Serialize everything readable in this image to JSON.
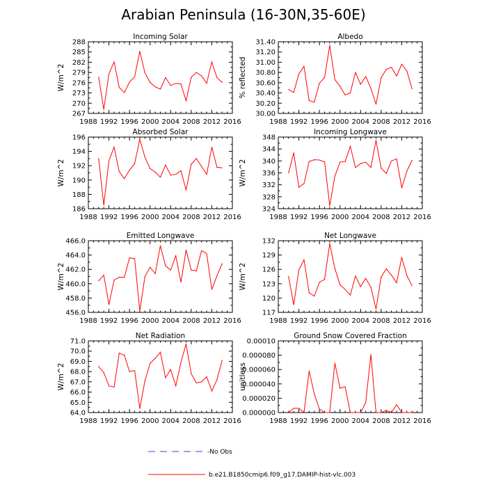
{
  "title": "Arabian Peninsula (16-30N,35-60E)",
  "legend": {
    "obs_label": "No Obs",
    "model_label": "b.e21.B1850cmip6.f09_g17.DAMIP-hist-vlc.003",
    "obs_color": "#3b3bd6",
    "model_color": "#ff0000"
  },
  "chart_data": [
    {
      "type": "line",
      "title": "Incoming Solar",
      "xlabel": "",
      "ylabel": "W/m^2",
      "xlim": [
        1988,
        2016
      ],
      "ylim": [
        267,
        288
      ],
      "xticks": [
        1988,
        1992,
        1996,
        2000,
        2004,
        2008,
        2012,
        2016
      ],
      "xticklabels": [
        "1988",
        "1992",
        "1996",
        "2000",
        "2004",
        "2008",
        "2012",
        "2016"
      ],
      "yticks": [
        267,
        270,
        273,
        276,
        279,
        282,
        285,
        288
      ],
      "yticklabels": [
        "267",
        "270",
        "273",
        "276",
        "279",
        "282",
        "285",
        "288"
      ],
      "x": [
        1990,
        1991,
        1992,
        1993,
        1994,
        1995,
        1996,
        1997,
        1998,
        1999,
        2000,
        2001,
        2002,
        2003,
        2004,
        2005,
        2006,
        2007,
        2008,
        2009,
        2010,
        2011,
        2012,
        2013,
        2014
      ],
      "series": [
        {
          "name": "b.e21.B1850cmip6.f09_g17.DAMIP-hist-vlc.003",
          "values": [
            277.6,
            268.2,
            278.6,
            282.1,
            274.6,
            273.1,
            276.2,
            277.7,
            285.2,
            278.9,
            276.1,
            274.8,
            274.1,
            277.5,
            275.2,
            275.8,
            275.6,
            270.7,
            277.6,
            279.0,
            278.0,
            275.8,
            282.1,
            277.5,
            276.1
          ]
        }
      ]
    },
    {
      "type": "line",
      "title": "Albedo",
      "xlabel": "",
      "ylabel": "% reflected",
      "xlim": [
        1988,
        2016
      ],
      "ylim": [
        30.0,
        31.4
      ],
      "xticks": [
        1988,
        1992,
        1996,
        2000,
        2004,
        2008,
        2012,
        2016
      ],
      "xticklabels": [
        "1988",
        "1992",
        "1996",
        "2000",
        "2004",
        "2008",
        "2012",
        "2016"
      ],
      "yticks": [
        30.0,
        30.2,
        30.4,
        30.6,
        30.8,
        31.0,
        31.2,
        31.4
      ],
      "yticklabels": [
        "30.00",
        "30.20",
        "30.40",
        "30.60",
        "30.80",
        "31.00",
        "31.20",
        "31.40"
      ],
      "x": [
        1990,
        1991,
        1992,
        1993,
        1994,
        1995,
        1996,
        1997,
        1998,
        1999,
        2000,
        2001,
        2002,
        2003,
        2004,
        2005,
        2006,
        2007,
        2008,
        2009,
        2010,
        2011,
        2012,
        2013,
        2014
      ],
      "series": [
        {
          "name": "b.e21.B1850cmip6.f09_g17.DAMIP-hist-vlc.003",
          "values": [
            30.47,
            30.41,
            30.77,
            30.92,
            30.25,
            30.22,
            30.59,
            30.7,
            31.33,
            30.66,
            30.53,
            30.36,
            30.4,
            30.8,
            30.57,
            30.72,
            30.49,
            30.18,
            30.7,
            30.86,
            30.9,
            30.73,
            30.96,
            30.83,
            30.48
          ]
        }
      ]
    },
    {
      "type": "line",
      "title": "Absorbed Solar",
      "xlabel": "",
      "ylabel": "W/m^2",
      "xlim": [
        1988,
        2016
      ],
      "ylim": [
        186,
        196
      ],
      "xticks": [
        1988,
        1992,
        1996,
        2000,
        2004,
        2008,
        2012,
        2016
      ],
      "xticklabels": [
        "1988",
        "1992",
        "1996",
        "2000",
        "2004",
        "2008",
        "2012",
        "2016"
      ],
      "yticks": [
        186,
        188,
        190,
        192,
        194,
        196
      ],
      "yticklabels": [
        "186",
        "188",
        "190",
        "192",
        "194",
        "196"
      ],
      "x": [
        1990,
        1991,
        1992,
        1993,
        1994,
        1995,
        1996,
        1997,
        1998,
        1999,
        2000,
        2001,
        2002,
        2003,
        2004,
        2005,
        2006,
        2007,
        2008,
        2009,
        2010,
        2011,
        2012,
        2013,
        2014
      ],
      "series": [
        {
          "name": "b.e21.B1850cmip6.f09_g17.DAMIP-hist-vlc.003",
          "values": [
            193.0,
            186.5,
            192.7,
            194.6,
            191.2,
            190.2,
            191.4,
            192.3,
            195.7,
            193.2,
            191.6,
            191.1,
            190.4,
            192.1,
            190.7,
            190.8,
            191.3,
            188.6,
            192.2,
            193.0,
            191.9,
            190.8,
            194.6,
            191.8,
            191.7
          ]
        }
      ]
    },
    {
      "type": "line",
      "title": "Incoming Longwave",
      "xlabel": "",
      "ylabel": "W/m^2",
      "xlim": [
        1988,
        2016
      ],
      "ylim": [
        324,
        348
      ],
      "xticks": [
        1988,
        1992,
        1996,
        2000,
        2004,
        2008,
        2012,
        2016
      ],
      "xticklabels": [
        "1988",
        "1992",
        "1996",
        "2000",
        "2004",
        "2008",
        "2012",
        "2016"
      ],
      "yticks": [
        324,
        328,
        332,
        336,
        340,
        344,
        348
      ],
      "yticklabels": [
        "324",
        "328",
        "332",
        "336",
        "340",
        "344",
        "348"
      ],
      "x": [
        1990,
        1991,
        1992,
        1993,
        1994,
        1995,
        1996,
        1997,
        1998,
        1999,
        2000,
        2001,
        2002,
        2003,
        2004,
        2005,
        2006,
        2007,
        2008,
        2009,
        2010,
        2011,
        2012,
        2013,
        2014
      ],
      "series": [
        {
          "name": "b.e21.B1850cmip6.f09_g17.DAMIP-hist-vlc.003",
          "values": [
            336.0,
            342.7,
            331.2,
            332.4,
            339.8,
            340.4,
            340.3,
            339.7,
            325.0,
            334.9,
            339.6,
            339.8,
            344.9,
            337.8,
            339.1,
            339.6,
            337.8,
            346.9,
            337.6,
            335.8,
            340.0,
            340.7,
            331.0,
            336.6,
            340.2
          ]
        }
      ]
    },
    {
      "type": "line",
      "title": "Emitted Longwave",
      "xlabel": "",
      "ylabel": "W/m^2",
      "xlim": [
        1988,
        2016
      ],
      "ylim": [
        456.0,
        466.0
      ],
      "xticks": [
        1988,
        1992,
        1996,
        2000,
        2004,
        2008,
        2012,
        2016
      ],
      "xticklabels": [
        "1988",
        "1992",
        "1996",
        "2000",
        "2004",
        "2008",
        "2012",
        "2016"
      ],
      "yticks": [
        456.0,
        458.0,
        460.0,
        462.0,
        464.0,
        466.0
      ],
      "yticklabels": [
        "456.0",
        "458.0",
        "460.0",
        "462.0",
        "464.0",
        "466.0"
      ],
      "x": [
        1990,
        1991,
        1992,
        1993,
        1994,
        1995,
        1996,
        1997,
        1998,
        1999,
        2000,
        2001,
        2002,
        2003,
        2004,
        2005,
        2006,
        2007,
        2008,
        2009,
        2010,
        2011,
        2012,
        2013,
        2014
      ],
      "series": [
        {
          "name": "b.e21.B1850cmip6.f09_g17.DAMIP-hist-vlc.003",
          "values": [
            460.4,
            461.2,
            457.1,
            460.5,
            460.9,
            460.9,
            463.6,
            463.5,
            456.2,
            461.0,
            462.3,
            461.4,
            465.3,
            462.5,
            461.9,
            463.9,
            460.2,
            464.7,
            461.9,
            461.8,
            464.6,
            464.2,
            459.2,
            461.1,
            462.8
          ]
        }
      ]
    },
    {
      "type": "line",
      "title": "Net Longwave",
      "xlabel": "",
      "ylabel": "W/m^2",
      "xlim": [
        1988,
        2016
      ],
      "ylim": [
        117,
        132
      ],
      "xticks": [
        1988,
        1992,
        1996,
        2000,
        2004,
        2008,
        2012,
        2016
      ],
      "xticklabels": [
        "1988",
        "1992",
        "1996",
        "2000",
        "2004",
        "2008",
        "2012",
        "2016"
      ],
      "yticks": [
        117,
        120,
        123,
        126,
        129,
        132
      ],
      "yticklabels": [
        "117",
        "120",
        "123",
        "126",
        "129",
        "132"
      ],
      "x": [
        1990,
        1991,
        1992,
        1993,
        1994,
        1995,
        1996,
        1997,
        1998,
        1999,
        2000,
        2001,
        2002,
        2003,
        2004,
        2005,
        2006,
        2007,
        2008,
        2009,
        2010,
        2011,
        2012,
        2013,
        2014
      ],
      "series": [
        {
          "name": "b.e21.B1850cmip6.f09_g17.DAMIP-hist-vlc.003",
          "values": [
            124.5,
            118.6,
            125.9,
            128.0,
            121.1,
            120.4,
            123.3,
            123.9,
            131.4,
            126.2,
            122.8,
            121.8,
            120.6,
            124.6,
            122.4,
            124.1,
            122.3,
            117.7,
            124.4,
            126.1,
            124.8,
            123.2,
            128.5,
            124.7,
            122.6
          ]
        }
      ]
    },
    {
      "type": "line",
      "title": "Net Radiation",
      "xlabel": "",
      "ylabel": "W/m^2",
      "xlim": [
        1988,
        2016
      ],
      "ylim": [
        64.0,
        71.0
      ],
      "xticks": [
        1988,
        1992,
        1996,
        2000,
        2004,
        2008,
        2012,
        2016
      ],
      "xticklabels": [
        "1988",
        "1992",
        "1996",
        "2000",
        "2004",
        "2008",
        "2012",
        "2016"
      ],
      "yticks": [
        64.0,
        65.0,
        66.0,
        67.0,
        68.0,
        69.0,
        70.0,
        71.0
      ],
      "yticklabels": [
        "64.0",
        "65.0",
        "66.0",
        "67.0",
        "68.0",
        "69.0",
        "70.0",
        "71.0"
      ],
      "x": [
        1990,
        1991,
        1992,
        1993,
        1994,
        1995,
        1996,
        1997,
        1998,
        1999,
        2000,
        2001,
        2002,
        2003,
        2004,
        2005,
        2006,
        2007,
        2008,
        2009,
        2010,
        2011,
        2012,
        2013,
        2014
      ],
      "series": [
        {
          "name": "b.e21.B1850cmip6.f09_g17.DAMIP-hist-vlc.003",
          "values": [
            68.5,
            67.9,
            66.6,
            66.5,
            69.8,
            69.6,
            68.0,
            68.1,
            64.4,
            67.1,
            68.8,
            69.3,
            69.9,
            67.4,
            68.2,
            66.6,
            68.9,
            70.7,
            67.8,
            66.9,
            67.0,
            67.5,
            66.1,
            67.2,
            69.1
          ]
        }
      ]
    },
    {
      "type": "line",
      "title": "Ground Snow Covered Fraction",
      "xlabel": "",
      "ylabel": "unitless",
      "xlim": [
        1988,
        2016
      ],
      "ylim": [
        0.0,
        0.0001
      ],
      "xticks": [
        1988,
        1992,
        1996,
        2000,
        2004,
        2008,
        2012,
        2016
      ],
      "xticklabels": [
        "1988",
        "1992",
        "1996",
        "2000",
        "2004",
        "2008",
        "2012",
        "2016"
      ],
      "yticks": [
        0.0,
        2e-05,
        4e-05,
        6e-05,
        8e-05,
        0.0001
      ],
      "yticklabels": [
        "0.000000",
        "0.000020",
        "0.000040",
        "0.000060",
        "0.000080",
        "0.00010"
      ],
      "x": [
        1990,
        1991,
        1992,
        1993,
        1994,
        1995,
        1996,
        1997,
        1998,
        1999,
        2000,
        2001,
        2002,
        2003,
        2004,
        2005,
        2006,
        2007,
        2008,
        2009,
        2010,
        2011,
        2012,
        2013,
        2014
      ],
      "series": [
        {
          "name": "b.e21.B1850cmip6.f09_g17.DAMIP-hist-vlc.003",
          "values": [
            0.0,
            6e-06,
            6e-06,
            0.0,
            5.8e-05,
            2.6e-05,
            5e-06,
            0.0,
            0.0,
            6.9e-05,
            3.4e-05,
            3.6e-05,
            0.0,
            0.0,
            0.0,
            1.4e-05,
            8.1e-05,
            0.0,
            0.0,
            3e-06,
            0.0,
            1.1e-05,
            0.0,
            0.0,
            0.0
          ]
        }
      ]
    }
  ]
}
